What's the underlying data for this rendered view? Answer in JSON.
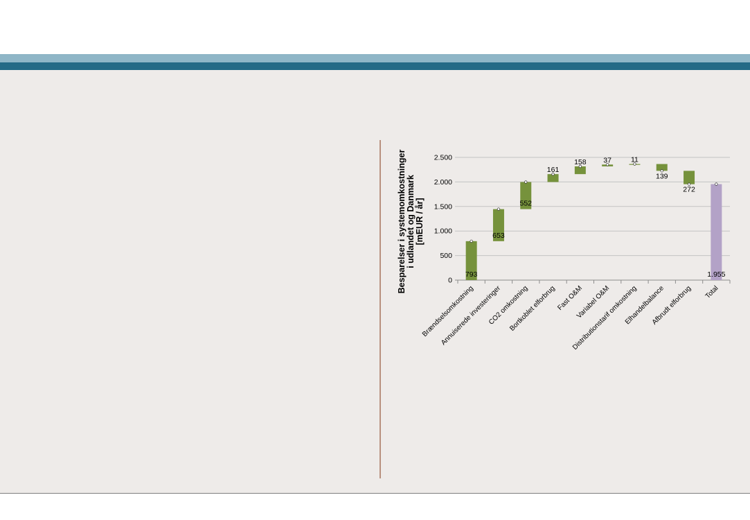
{
  "colors": {
    "increase": "#76923c",
    "total": "#b3a2c7",
    "header_band_light": "#8fb6c7",
    "header_band_dark": "#246a86",
    "divider": "#b8917e",
    "background": "#eeebe9"
  },
  "chart_data": {
    "type": "bar",
    "subtype": "waterfall",
    "ylabel": "Besparelser i systemomkostninger i udlandet og Danmark [mEUR / år]",
    "ylabel_lines": [
      "Besparelser i systemomkostninger",
      "i udlandet og Danmark",
      "[mEUR / år]"
    ],
    "ylim": [
      0,
      2500
    ],
    "yticks": [
      0,
      500,
      1000,
      1500,
      2000,
      2500
    ],
    "ytick_labels": [
      "0",
      "500",
      "1.000",
      "1.500",
      "2.000",
      "2.500"
    ],
    "grid": true,
    "categories": [
      "Brændselsomkostning",
      "Annuiserede investeringer",
      "CO2 omkostning",
      "Bortkoblet elforbrug",
      "Fast O&M",
      "Variabel O&M",
      "Distributionstarif omkostning",
      "Elhandelbalance",
      "Afbrudt elforbrug",
      "Total"
    ],
    "values": [
      793,
      653,
      552,
      161,
      158,
      37,
      11,
      -139,
      -272,
      1955
    ],
    "value_labels": [
      "793",
      "653",
      "552",
      "161",
      "158",
      "37",
      "11",
      "139",
      "272",
      "1.955"
    ]
  }
}
